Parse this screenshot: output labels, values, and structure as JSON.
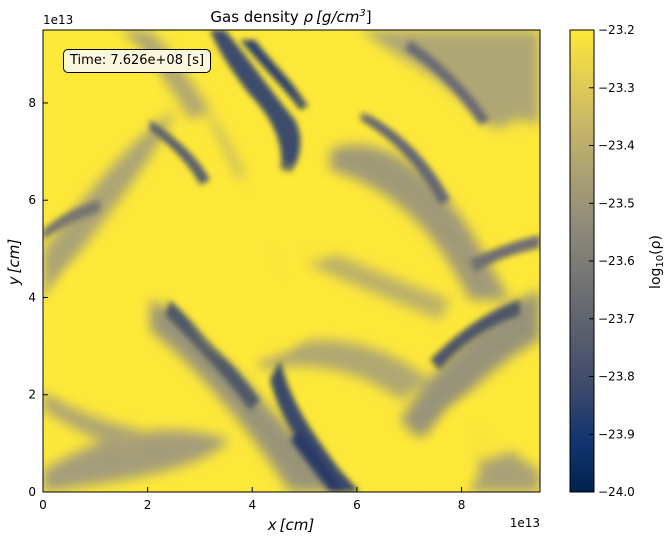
{
  "chart_data": {
    "type": "heatmap",
    "title": "Gas density ρ [g/cm³]",
    "title_parts": {
      "main": "Gas density ",
      "sym": "ρ",
      "unit": "[g/cm",
      "sup": "3",
      "close": "]"
    },
    "xlabel_parts": {
      "sym": "x",
      "unit": "[cm]"
    },
    "ylabel_parts": {
      "sym": "y",
      "unit": "[cm]"
    },
    "x_offset_text": "1e13",
    "y_offset_text": "1e13",
    "xlim": [
      0,
      9.5
    ],
    "ylim": [
      0,
      9.5
    ],
    "x_ticks": [
      0,
      2,
      4,
      6,
      8
    ],
    "x_tick_labels": [
      "0",
      "2",
      "4",
      "6",
      "8"
    ],
    "y_ticks": [
      0,
      2,
      4,
      6,
      8
    ],
    "y_tick_labels": [
      "0",
      "2",
      "4",
      "6",
      "8"
    ],
    "annotation": "Time: 7.626e+08 [s]",
    "colorbar": {
      "label_parts": {
        "main": "log",
        "sub": "10",
        "arg": "(ρ)"
      },
      "range": [
        -24.0,
        -23.2
      ],
      "ticks": [
        -24.0,
        -23.9,
        -23.8,
        -23.7,
        -23.6,
        -23.5,
        -23.4,
        -23.3,
        -23.2
      ],
      "tick_labels": [
        "−24.0",
        "−23.9",
        "−23.8",
        "−23.7",
        "−23.6",
        "−23.5",
        "−23.4",
        "−23.3",
        "−23.2"
      ],
      "colormap": "cividis",
      "colors": [
        "#00224e",
        "#123570",
        "#3b496c",
        "#575d6d",
        "#707173",
        "#8a8779",
        "#a59c74",
        "#c3b369",
        "#e1cc55",
        "#fee838"
      ]
    },
    "grid": false
  }
}
